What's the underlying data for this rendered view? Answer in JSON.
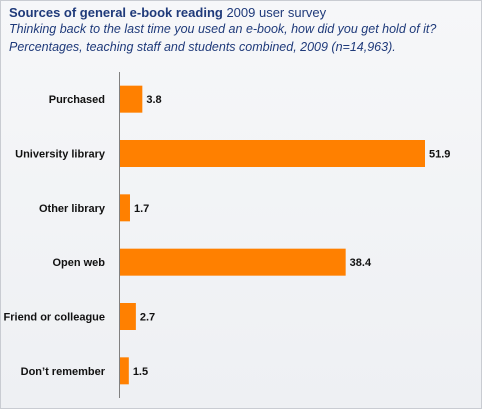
{
  "header": {
    "title_bold": "Sources of general e-book reading",
    "title_rest": " 2009 user survey",
    "subtitle_1": "Thinking back to the last time you used an e-book, how did you get hold of it?",
    "subtitle_2": "Percentages,  teaching staff and students combined, 2009 (n=14,963)."
  },
  "chart_data": {
    "type": "bar",
    "orientation": "horizontal",
    "title": "Sources of general e-book reading 2009 user survey",
    "categories": [
      "Purchased",
      "University library",
      "Other library",
      "Open web",
      "Friend or colleague",
      "Don’t remember"
    ],
    "values": [
      3.8,
      51.9,
      1.7,
      38.4,
      2.7,
      1.5
    ],
    "value_labels": [
      "3.8",
      "51.9",
      "1.7",
      "38.4",
      "2.7",
      "1.5"
    ],
    "xlim": [
      0,
      55
    ],
    "grid": false,
    "legend": "none",
    "bar_color": "#ff8000"
  }
}
